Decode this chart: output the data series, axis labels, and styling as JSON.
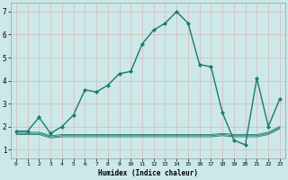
{
  "xlabel": "Humidex (Indice chaleur)",
  "background_color": "#cce8e8",
  "line_color": "#1a7a6e",
  "grid_color": "#b8d4d4",
  "x_ticks": [
    0,
    1,
    2,
    3,
    4,
    5,
    6,
    7,
    8,
    9,
    10,
    11,
    12,
    13,
    14,
    15,
    16,
    17,
    18,
    19,
    20,
    21,
    22,
    23
  ],
  "y_ticks": [
    1,
    2,
    3,
    4,
    5,
    6,
    7
  ],
  "ylim": [
    0.6,
    7.4
  ],
  "xlim": [
    -0.5,
    23.5
  ],
  "series": [
    {
      "x": [
        0,
        1,
        2,
        3,
        4,
        5,
        6,
        7,
        8,
        9,
        10,
        11,
        12,
        13,
        14,
        15,
        16,
        17,
        18,
        19,
        20,
        21,
        22,
        23
      ],
      "y": [
        1.8,
        1.8,
        2.4,
        1.7,
        2.0,
        2.5,
        3.6,
        3.5,
        3.8,
        4.3,
        4.4,
        5.6,
        6.2,
        6.5,
        7.0,
        6.5,
        4.7,
        4.6,
        2.6,
        1.4,
        1.2,
        4.1,
        2.0,
        3.2
      ],
      "color": "#1a7a6e",
      "marker": "D",
      "markersize": 2.0,
      "linewidth": 1.0
    },
    {
      "x": [
        0,
        1,
        2,
        3,
        4,
        5,
        6,
        7,
        8,
        9,
        10,
        11,
        12,
        13,
        14,
        15,
        16,
        17,
        18,
        19,
        20,
        21,
        22,
        23
      ],
      "y": [
        1.75,
        1.75,
        1.75,
        1.6,
        1.65,
        1.65,
        1.65,
        1.65,
        1.65,
        1.65,
        1.65,
        1.65,
        1.65,
        1.65,
        1.65,
        1.65,
        1.65,
        1.65,
        1.7,
        1.65,
        1.65,
        1.65,
        1.75,
        2.0
      ],
      "color": "#1a7a6e",
      "marker": null,
      "markersize": 0,
      "linewidth": 0.6
    },
    {
      "x": [
        0,
        1,
        2,
        3,
        4,
        5,
        6,
        7,
        8,
        9,
        10,
        11,
        12,
        13,
        14,
        15,
        16,
        17,
        18,
        19,
        20,
        21,
        22,
        23
      ],
      "y": [
        1.7,
        1.7,
        1.7,
        1.55,
        1.6,
        1.6,
        1.6,
        1.6,
        1.6,
        1.6,
        1.6,
        1.6,
        1.6,
        1.6,
        1.6,
        1.6,
        1.6,
        1.6,
        1.65,
        1.6,
        1.6,
        1.6,
        1.7,
        1.95
      ],
      "color": "#1a7a6e",
      "marker": null,
      "markersize": 0,
      "linewidth": 0.6
    },
    {
      "x": [
        0,
        1,
        2,
        3,
        4,
        5,
        6,
        7,
        8,
        9,
        10,
        11,
        12,
        13,
        14,
        15,
        16,
        17,
        18,
        19,
        20,
        21,
        22,
        23
      ],
      "y": [
        1.65,
        1.65,
        1.65,
        1.5,
        1.55,
        1.55,
        1.55,
        1.55,
        1.55,
        1.55,
        1.55,
        1.55,
        1.55,
        1.55,
        1.55,
        1.55,
        1.55,
        1.55,
        1.6,
        1.55,
        1.55,
        1.55,
        1.65,
        1.9
      ],
      "color": "#1a7a6e",
      "marker": null,
      "markersize": 0,
      "linewidth": 0.6
    }
  ]
}
